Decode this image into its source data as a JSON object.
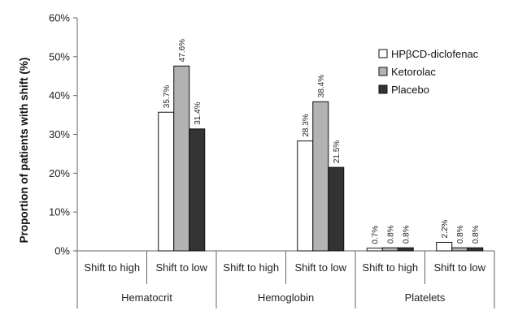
{
  "chart_data": {
    "type": "bar",
    "ylabel": "Proportion of patients with shift (%)",
    "xlabel": "",
    "ylim": [
      0,
      60
    ],
    "yticks": [
      "0%",
      "10%",
      "20%",
      "30%",
      "40%",
      "50%",
      "60%"
    ],
    "categories": [
      "Shift to high",
      "Shift to low",
      "Shift to high",
      "Shift to low",
      "Shift to high",
      "Shift to low"
    ],
    "groups": [
      "Hematocrit",
      "Hemoglobin",
      "Platelets"
    ],
    "series": [
      {
        "name": "HPβCD-diclofenac",
        "color": "#ffffff",
        "values": [
          null,
          35.7,
          null,
          28.3,
          0.7,
          2.2
        ],
        "labels": [
          "",
          "35.7%",
          "",
          "28.3%",
          "0.7%",
          "2.2%"
        ]
      },
      {
        "name": "Ketorolac",
        "color": "#b3b3b3",
        "values": [
          null,
          47.6,
          null,
          38.4,
          0.8,
          0.8
        ],
        "labels": [
          "",
          "47.6%",
          "",
          "38.4%",
          "0.8%",
          "0.8%"
        ]
      },
      {
        "name": "Placebo",
        "color": "#333333",
        "values": [
          null,
          31.4,
          null,
          21.5,
          0.8,
          0.8
        ],
        "labels": [
          "",
          "31.4%",
          "",
          "21.5%",
          "0.8%",
          "0.8%"
        ]
      }
    ],
    "grid": false,
    "legend": "top-right"
  }
}
